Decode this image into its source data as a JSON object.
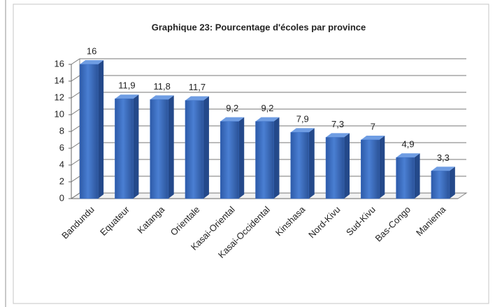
{
  "chart_data": {
    "type": "bar",
    "title": "Graphique 23: Pourcentage d'écoles par province",
    "categories": [
      "Bandundu",
      "Equateur",
      "Katanga",
      "Orientale",
      "Kasai-Oriental",
      "Kasai-Occidental",
      "Kinshasa",
      "Nord-Kivu",
      "Sud-Kivu",
      "Bas-Congo",
      "Maniema"
    ],
    "values": [
      16,
      11.9,
      11.8,
      11.7,
      9.2,
      9.2,
      7.9,
      7.3,
      7,
      4.9,
      3.3
    ],
    "value_labels": [
      "16",
      "11,9",
      "11,8",
      "11,7",
      "9,2",
      "9,2",
      "7,9",
      "7,3",
      "7",
      "4,9",
      "3,3"
    ],
    "color": "#3b6fc6",
    "ylim": [
      0,
      16
    ],
    "yticks": [
      0,
      2,
      4,
      6,
      8,
      10,
      12,
      14,
      16
    ],
    "grid": true
  }
}
